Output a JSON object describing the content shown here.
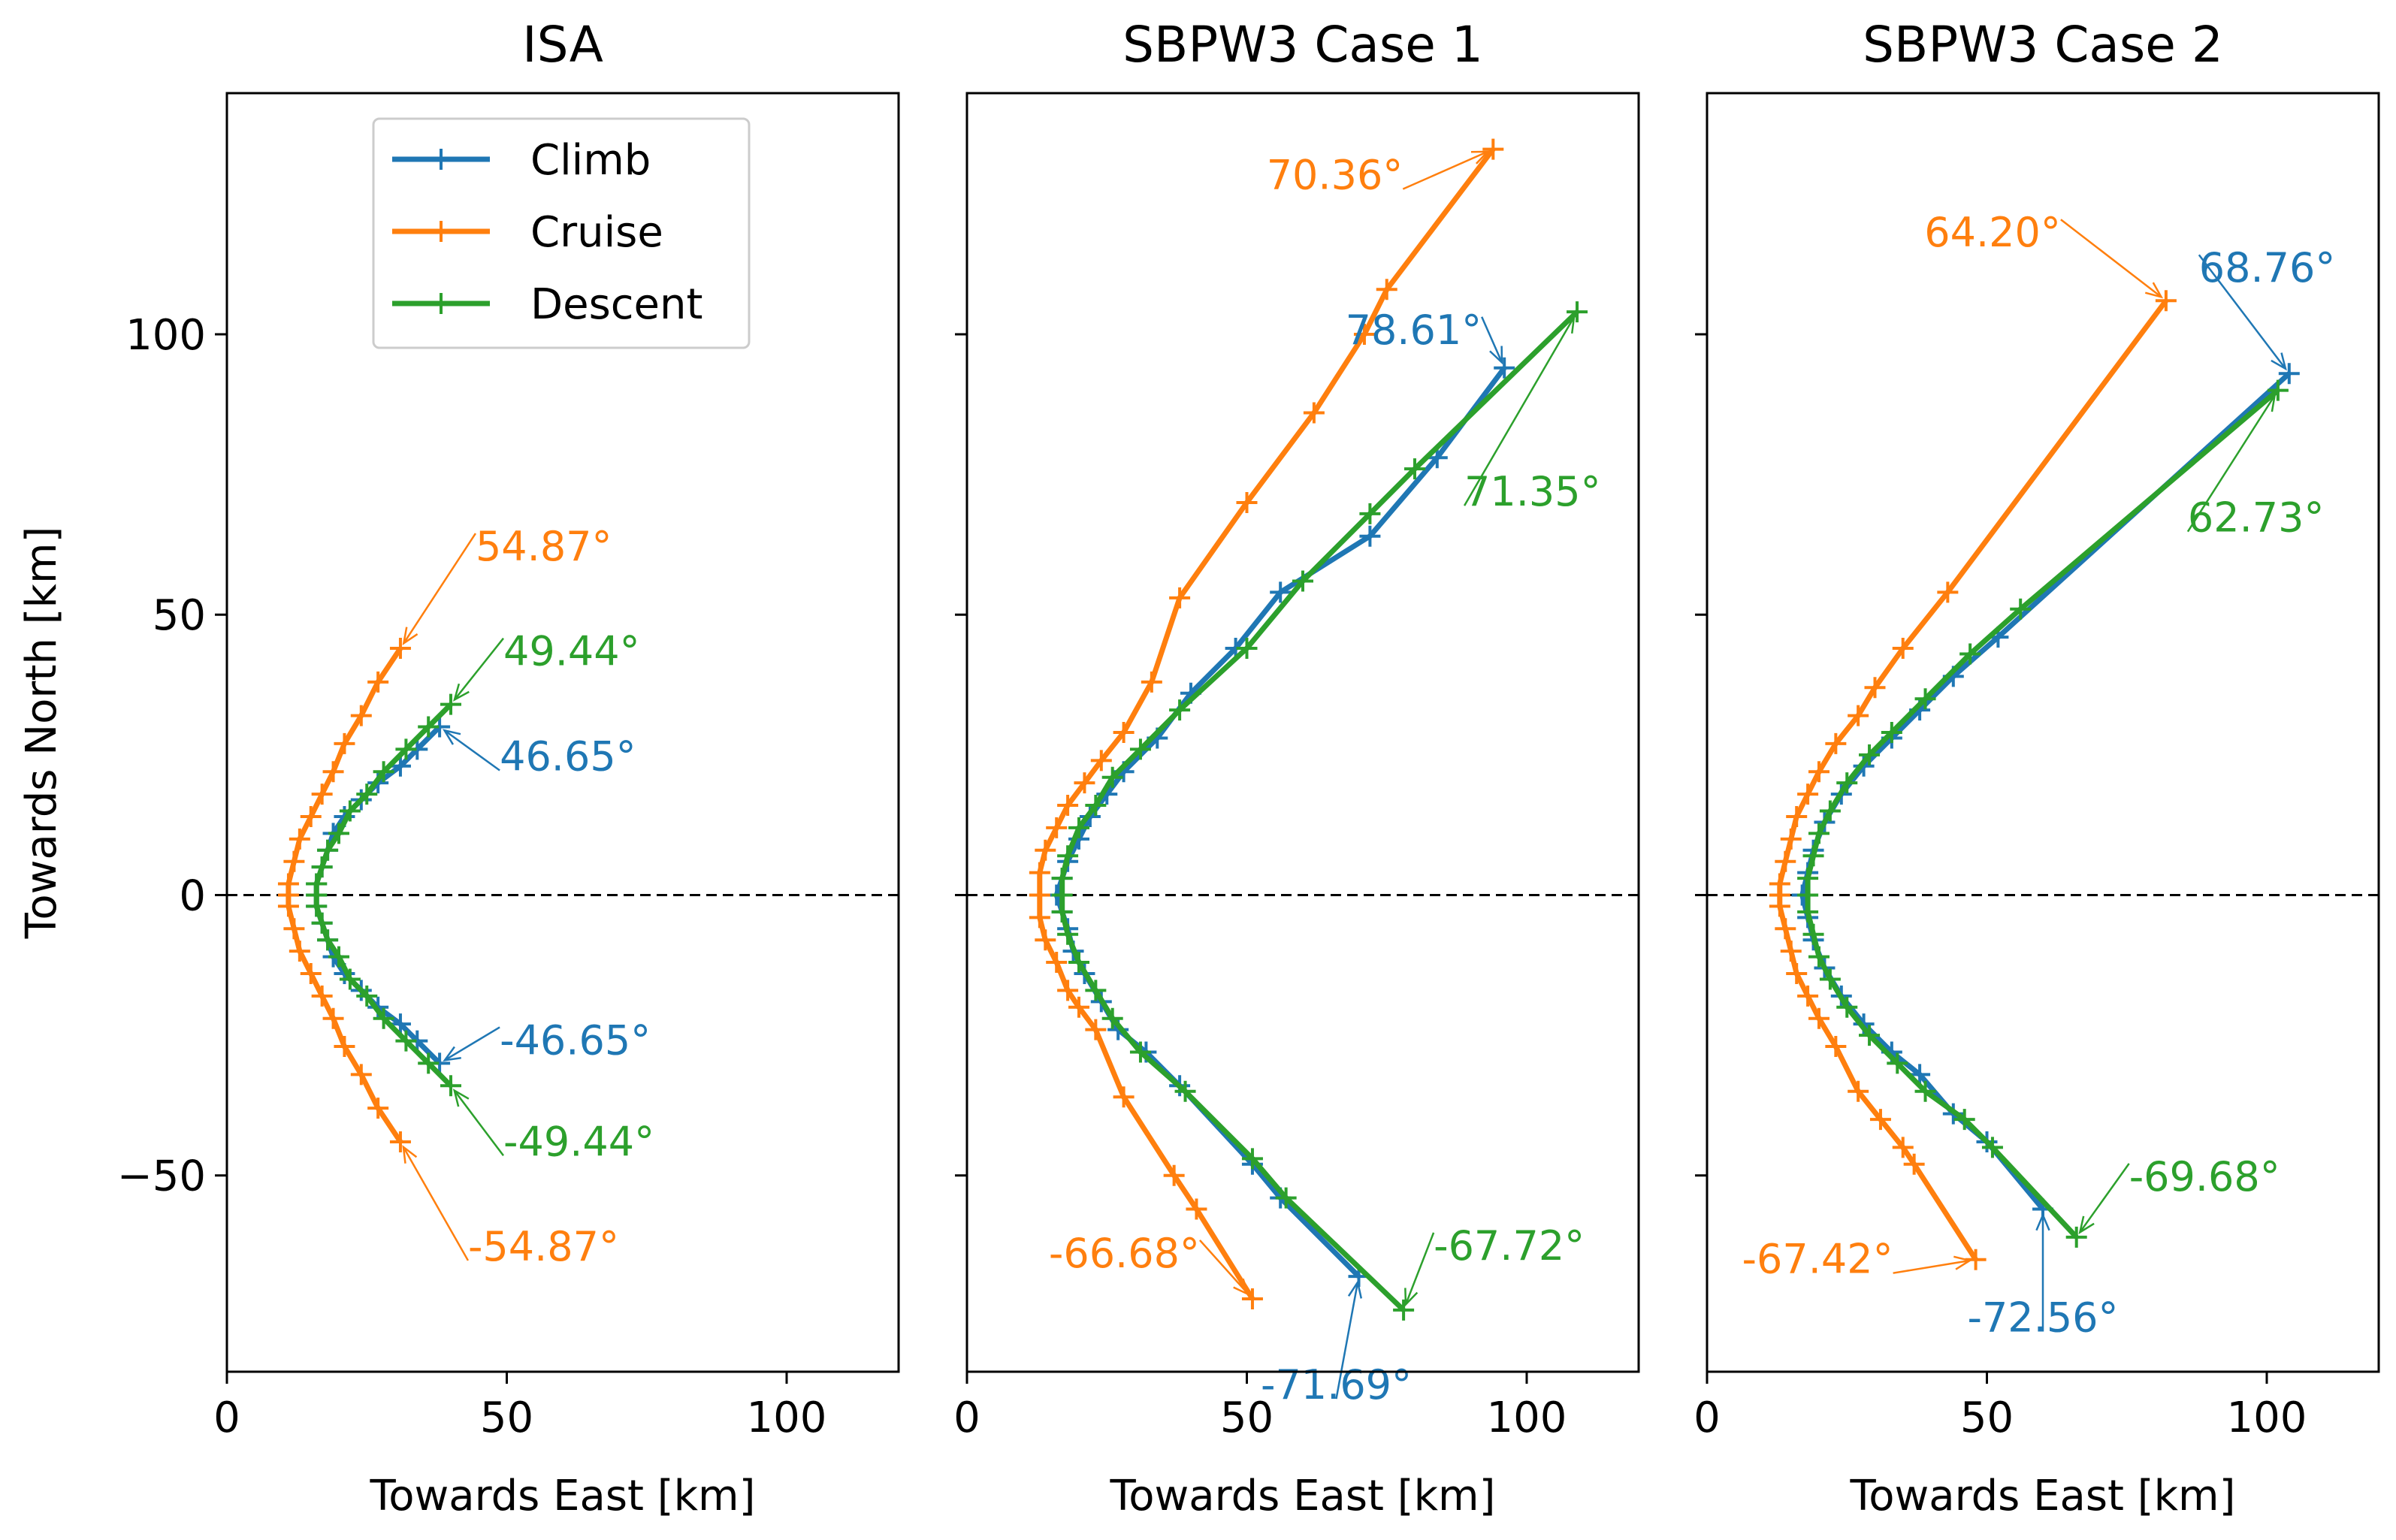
{
  "chart_data": [
    {
      "type": "line",
      "title": "ISA",
      "xlabel": "Towards East [km]",
      "ylabel": "Towards North [km]",
      "xlim": [
        0,
        120
      ],
      "ylim": [
        -85,
        143
      ],
      "xticks": [
        0,
        50,
        100
      ],
      "yticks": [
        100,
        50,
        0,
        -50
      ],
      "ytick_labels": [
        "100",
        "50",
        "0",
        "−50"
      ],
      "reference_line": {
        "y": 0,
        "style": "dashed"
      },
      "legend": {
        "position": "top",
        "entries": [
          "Climb",
          "Cruise",
          "Descent"
        ]
      },
      "series": [
        {
          "name": "Climb",
          "points": [
            [
              38,
              30
            ],
            [
              34,
              26
            ],
            [
              31,
              23
            ],
            [
              27,
              20
            ],
            [
              24,
              17
            ],
            [
              21,
              14
            ],
            [
              19,
              11
            ],
            [
              18,
              8
            ],
            [
              17,
              5
            ],
            [
              16,
              2
            ],
            [
              16,
              0
            ],
            [
              16,
              -2
            ],
            [
              17,
              -5
            ],
            [
              18,
              -8
            ],
            [
              19,
              -11
            ],
            [
              21,
              -14
            ],
            [
              24,
              -17
            ],
            [
              27,
              -20
            ],
            [
              31,
              -23
            ],
            [
              34,
              -26
            ],
            [
              38,
              -30
            ]
          ]
        },
        {
          "name": "Cruise",
          "points": [
            [
              31,
              44
            ],
            [
              27,
              38
            ],
            [
              24,
              32
            ],
            [
              21,
              27
            ],
            [
              19,
              22
            ],
            [
              17,
              18
            ],
            [
              15,
              14
            ],
            [
              13,
              10
            ],
            [
              12,
              6
            ],
            [
              11,
              2
            ],
            [
              11,
              0
            ],
            [
              11,
              -2
            ],
            [
              12,
              -6
            ],
            [
              13,
              -10
            ],
            [
              15,
              -14
            ],
            [
              17,
              -18
            ],
            [
              19,
              -22
            ],
            [
              21,
              -27
            ],
            [
              24,
              -32
            ],
            [
              27,
              -38
            ],
            [
              31,
              -44
            ]
          ]
        },
        {
          "name": "Descent",
          "points": [
            [
              40,
              34
            ],
            [
              36,
              30
            ],
            [
              32,
              26
            ],
            [
              28,
              22
            ],
            [
              25,
              18
            ],
            [
              22,
              15
            ],
            [
              20,
              11
            ],
            [
              18,
              8
            ],
            [
              17,
              5
            ],
            [
              16,
              2
            ],
            [
              16,
              0
            ],
            [
              16,
              -2
            ],
            [
              17,
              -5
            ],
            [
              18,
              -8
            ],
            [
              20,
              -11
            ],
            [
              22,
              -15
            ],
            [
              25,
              -18
            ],
            [
              28,
              -22
            ],
            [
              32,
              -26
            ],
            [
              36,
              -30
            ],
            [
              40,
              -34
            ]
          ]
        }
      ],
      "annotations": [
        {
          "text": "54.87°",
          "series": "Cruise",
          "x": 31,
          "y": 44
        },
        {
          "text": "49.44°",
          "series": "Descent",
          "x": 40,
          "y": 34
        },
        {
          "text": "46.65°",
          "series": "Climb",
          "x": 38,
          "y": 30
        },
        {
          "text": "-46.65°",
          "series": "Climb",
          "x": 38,
          "y": -30
        },
        {
          "text": "-49.44°",
          "series": "Descent",
          "x": 40,
          "y": -34
        },
        {
          "text": "-54.87°",
          "series": "Cruise",
          "x": 31,
          "y": -44
        }
      ]
    },
    {
      "type": "line",
      "title": "SBPW3 Case 1",
      "xlabel": "Towards East [km]",
      "ylabel": "",
      "xlim": [
        0,
        120
      ],
      "ylim": [
        -85,
        143
      ],
      "xticks": [
        0,
        50,
        100
      ],
      "yticks": [
        100,
        50,
        0,
        -50
      ],
      "reference_line": {
        "y": 0,
        "style": "dashed"
      },
      "series": [
        {
          "name": "Climb",
          "points": [
            [
              96,
              94
            ],
            [
              84,
              78
            ],
            [
              72,
              64
            ],
            [
              56,
              54
            ],
            [
              48,
              44
            ],
            [
              40,
              36
            ],
            [
              34,
              28
            ],
            [
              28,
              22
            ],
            [
              25,
              18
            ],
            [
              22,
              14
            ],
            [
              20,
              10
            ],
            [
              18,
              6
            ],
            [
              17,
              3
            ],
            [
              16,
              0
            ],
            [
              17,
              -3
            ],
            [
              18,
              -6
            ],
            [
              19,
              -10
            ],
            [
              21,
              -14
            ],
            [
              24,
              -19
            ],
            [
              27,
              -24
            ],
            [
              32,
              -28
            ],
            [
              38,
              -34
            ],
            [
              51,
              -48
            ],
            [
              56,
              -54
            ],
            [
              70,
              -68
            ]
          ]
        },
        {
          "name": "Cruise",
          "points": [
            [
              94,
              133
            ],
            [
              75,
              108
            ],
            [
              71,
              100
            ],
            [
              62,
              86
            ],
            [
              50,
              70
            ],
            [
              38,
              53
            ],
            [
              33,
              38
            ],
            [
              28,
              29
            ],
            [
              24,
              24
            ],
            [
              21,
              20
            ],
            [
              18,
              16
            ],
            [
              16,
              12
            ],
            [
              14,
              8
            ],
            [
              13,
              4
            ],
            [
              13,
              0
            ],
            [
              13,
              -4
            ],
            [
              14,
              -8
            ],
            [
              16,
              -12
            ],
            [
              18,
              -17
            ],
            [
              20,
              -20
            ],
            [
              23,
              -24
            ],
            [
              28,
              -36
            ],
            [
              37,
              -50
            ],
            [
              41,
              -56
            ],
            [
              51,
              -72
            ]
          ]
        },
        {
          "name": "Descent",
          "points": [
            [
              109,
              104
            ],
            [
              80,
              76
            ],
            [
              72,
              68
            ],
            [
              60,
              56
            ],
            [
              50,
              44
            ],
            [
              38,
              33
            ],
            [
              31,
              26
            ],
            [
              26,
              21
            ],
            [
              23,
              16
            ],
            [
              20,
              12
            ],
            [
              18,
              7
            ],
            [
              17,
              3
            ],
            [
              17,
              0
            ],
            [
              17,
              -3
            ],
            [
              18,
              -7
            ],
            [
              20,
              -12
            ],
            [
              23,
              -17
            ],
            [
              26,
              -22
            ],
            [
              31,
              -28
            ],
            [
              39,
              -35
            ],
            [
              51,
              -47
            ],
            [
              57,
              -54
            ],
            [
              78,
              -74
            ]
          ]
        }
      ],
      "annotations": [
        {
          "text": "70.36°",
          "series": "Cruise",
          "x": 94,
          "y": 133
        },
        {
          "text": "78.61°",
          "series": "Climb",
          "x": 96,
          "y": 94
        },
        {
          "text": "71.35°",
          "series": "Descent",
          "x": 109,
          "y": 104
        },
        {
          "text": "-66.68°",
          "series": "Cruise",
          "x": 51,
          "y": -72
        },
        {
          "text": "-67.72°",
          "series": "Descent",
          "x": 78,
          "y": -74
        },
        {
          "text": "-71.69°",
          "series": "Climb",
          "x": 70,
          "y": -68
        }
      ]
    },
    {
      "type": "line",
      "title": "SBPW3 Case 2",
      "xlabel": "Towards East [km]",
      "ylabel": "",
      "xlim": [
        0,
        120
      ],
      "ylim": [
        -85,
        143
      ],
      "xticks": [
        0,
        50,
        100
      ],
      "yticks": [
        100,
        50,
        0,
        -50
      ],
      "reference_line": {
        "y": 0,
        "style": "dashed"
      },
      "series": [
        {
          "name": "Climb",
          "points": [
            [
              104,
              93
            ],
            [
              52,
              46
            ],
            [
              44,
              39
            ],
            [
              38,
              33
            ],
            [
              33,
              28
            ],
            [
              28,
              23
            ],
            [
              24,
              18
            ],
            [
              21,
              13
            ],
            [
              19,
              8
            ],
            [
              18,
              4
            ],
            [
              17,
              0
            ],
            [
              18,
              -4
            ],
            [
              19,
              -8
            ],
            [
              21,
              -13
            ],
            [
              24,
              -18
            ],
            [
              28,
              -23
            ],
            [
              33,
              -28
            ],
            [
              38,
              -32
            ],
            [
              44,
              -39
            ],
            [
              50,
              -44
            ],
            [
              60,
              -56
            ]
          ]
        },
        {
          "name": "Cruise",
          "points": [
            [
              82,
              106
            ],
            [
              43,
              54
            ],
            [
              35,
              44
            ],
            [
              30,
              37
            ],
            [
              27,
              32
            ],
            [
              23,
              27
            ],
            [
              20,
              22
            ],
            [
              18,
              18
            ],
            [
              16,
              14
            ],
            [
              15,
              10
            ],
            [
              14,
              6
            ],
            [
              13,
              2
            ],
            [
              13,
              0
            ],
            [
              13,
              -2
            ],
            [
              14,
              -6
            ],
            [
              15,
              -10
            ],
            [
              16,
              -14
            ],
            [
              18,
              -18
            ],
            [
              20,
              -22
            ],
            [
              23,
              -27
            ],
            [
              27,
              -35
            ],
            [
              31,
              -40
            ],
            [
              35,
              -45
            ],
            [
              37,
              -48
            ],
            [
              48,
              -65
            ]
          ]
        },
        {
          "name": "Descent",
          "points": [
            [
              102,
              90
            ],
            [
              56,
              51
            ],
            [
              47,
              43
            ],
            [
              39,
              35
            ],
            [
              33,
              29
            ],
            [
              29,
              25
            ],
            [
              25,
              20
            ],
            [
              22,
              15
            ],
            [
              20,
              11
            ],
            [
              19,
              7
            ],
            [
              18,
              3
            ],
            [
              18,
              0
            ],
            [
              18,
              -3
            ],
            [
              19,
              -7
            ],
            [
              20,
              -11
            ],
            [
              22,
              -15
            ],
            [
              25,
              -20
            ],
            [
              29,
              -25
            ],
            [
              34,
              -30
            ],
            [
              39,
              -35
            ],
            [
              46,
              -40
            ],
            [
              51,
              -45
            ],
            [
              66,
              -61
            ]
          ]
        }
      ],
      "annotations": [
        {
          "text": "64.20°",
          "series": "Cruise",
          "x": 82,
          "y": 106
        },
        {
          "text": "68.76°",
          "series": "Climb",
          "x": 104,
          "y": 93
        },
        {
          "text": "62.73°",
          "series": "Descent",
          "x": 102,
          "y": 90
        },
        {
          "text": "-69.68°",
          "series": "Descent",
          "x": 66,
          "y": -61
        },
        {
          "text": "-67.42°",
          "series": "Cruise",
          "x": 48,
          "y": -65
        },
        {
          "text": "-72.56°",
          "series": "Climb",
          "x": 60,
          "y": -56
        }
      ]
    }
  ],
  "colors": {
    "Climb": "#1f77b4",
    "Cruise": "#ff7f0e",
    "Descent": "#2ca02c"
  }
}
